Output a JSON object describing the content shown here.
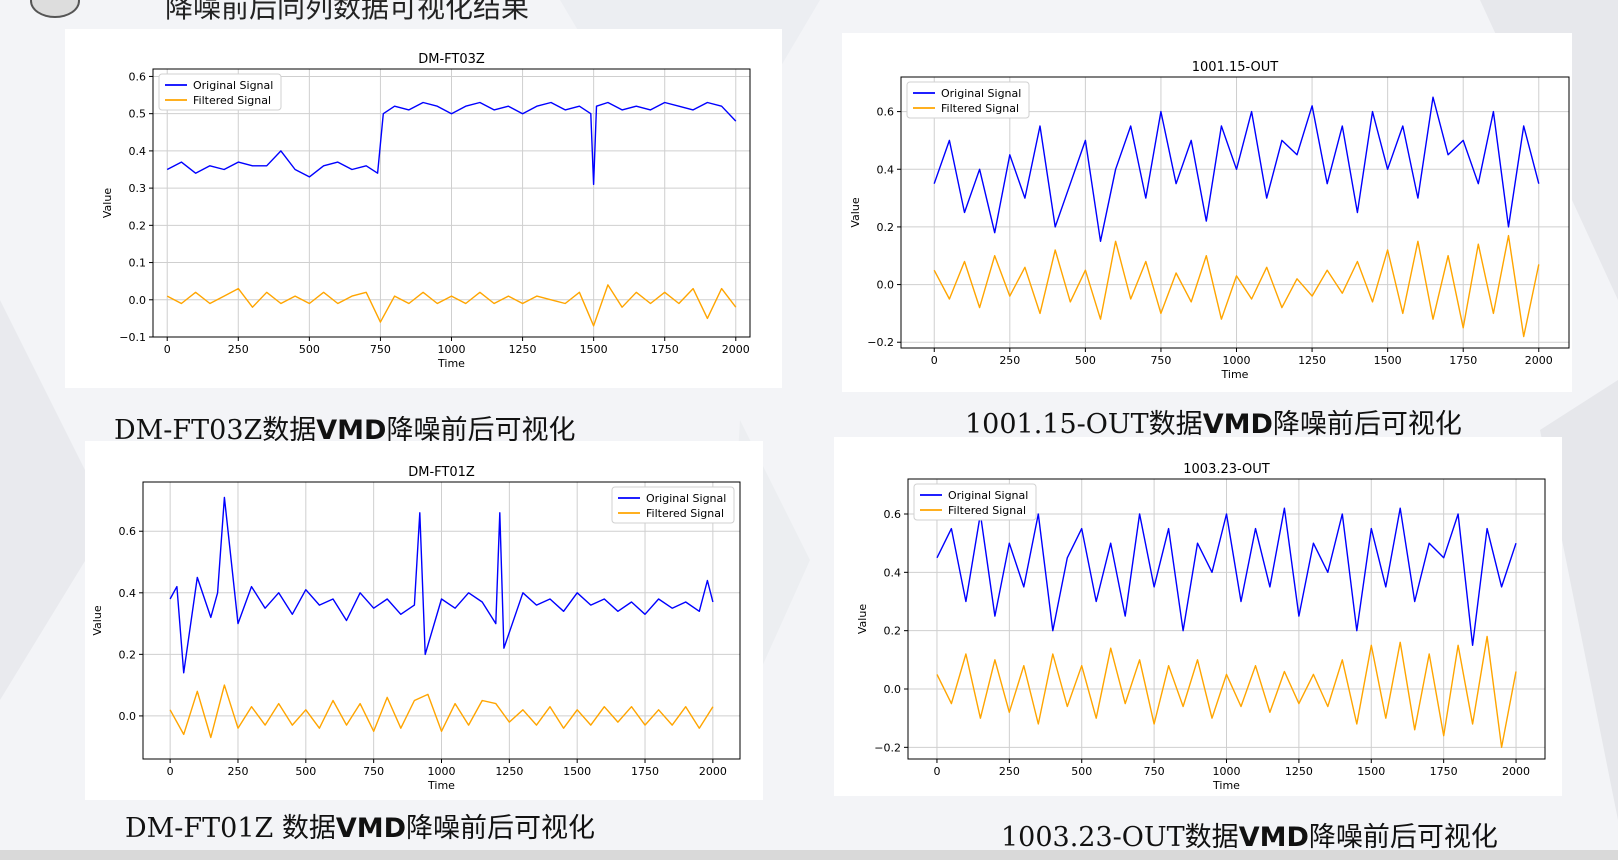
{
  "header": {
    "title": "降噪前后同列数据可视化结果"
  },
  "colors": {
    "original": "#0000ff",
    "filtered": "#ffa500",
    "background": "#f3f4f7"
  },
  "panels": [
    {
      "caption_prefix": "DM-FT03Z数据",
      "caption_bold": "VMD",
      "caption_suffix": "降噪前后可视化",
      "chart_data": {
        "type": "line",
        "title": "DM-FT03Z",
        "xlabel": "Time",
        "ylabel": "Value",
        "xlim": [
          -50,
          2050
        ],
        "ylim": [
          -0.1,
          0.62
        ],
        "xticks": [
          0,
          250,
          500,
          750,
          1000,
          1250,
          1500,
          1750,
          2000
        ],
        "xtick_labels": [
          "0",
          "250",
          "500",
          "750",
          "1000",
          "1250",
          "1500",
          "1750",
          "2000"
        ],
        "yticks": [
          -0.1,
          0.0,
          0.1,
          0.2,
          0.3,
          0.4,
          0.5,
          0.6
        ],
        "ytick_labels": [
          "−0.1",
          "0.0",
          "0.1",
          "0.2",
          "0.3",
          "0.4",
          "0.5",
          "0.6"
        ],
        "legend_position": "top-left",
        "grid": true,
        "series": [
          {
            "name": "Original Signal",
            "x": [
              0,
              50,
              100,
              150,
              200,
              250,
              300,
              350,
              400,
              450,
              500,
              550,
              600,
              650,
              700,
              740,
              760,
              800,
              850,
              900,
              950,
              1000,
              1050,
              1100,
              1150,
              1200,
              1250,
              1300,
              1350,
              1400,
              1450,
              1490,
              1500,
              1510,
              1550,
              1600,
              1650,
              1700,
              1750,
              1800,
              1850,
              1900,
              1950,
              2000
            ],
            "y": [
              0.35,
              0.37,
              0.34,
              0.36,
              0.35,
              0.37,
              0.36,
              0.36,
              0.4,
              0.35,
              0.33,
              0.36,
              0.37,
              0.35,
              0.36,
              0.34,
              0.5,
              0.52,
              0.51,
              0.53,
              0.52,
              0.5,
              0.52,
              0.53,
              0.51,
              0.52,
              0.5,
              0.52,
              0.53,
              0.51,
              0.52,
              0.5,
              0.31,
              0.52,
              0.53,
              0.51,
              0.52,
              0.51,
              0.53,
              0.52,
              0.51,
              0.53,
              0.52,
              0.48
            ]
          },
          {
            "name": "Filtered Signal",
            "x": [
              0,
              50,
              100,
              150,
              200,
              250,
              300,
              350,
              400,
              450,
              500,
              550,
              600,
              650,
              700,
              750,
              800,
              850,
              900,
              950,
              1000,
              1050,
              1100,
              1150,
              1200,
              1250,
              1300,
              1350,
              1400,
              1450,
              1500,
              1550,
              1600,
              1650,
              1700,
              1750,
              1800,
              1850,
              1900,
              1950,
              2000
            ],
            "y": [
              0.01,
              -0.01,
              0.02,
              -0.01,
              0.01,
              0.03,
              -0.02,
              0.02,
              -0.01,
              0.01,
              -0.01,
              0.02,
              -0.01,
              0.01,
              0.02,
              -0.06,
              0.01,
              -0.01,
              0.02,
              -0.01,
              0.01,
              -0.01,
              0.02,
              -0.01,
              0.01,
              -0.01,
              0.01,
              0.0,
              -0.01,
              0.02,
              -0.07,
              0.04,
              -0.02,
              0.02,
              -0.01,
              0.02,
              -0.01,
              0.03,
              -0.05,
              0.03,
              -0.02
            ]
          }
        ]
      }
    },
    {
      "caption_prefix": "1001.15-OUT数据",
      "caption_bold": "VMD",
      "caption_suffix": "降噪前后可视化",
      "chart_data": {
        "type": "line",
        "title": "1001.15-OUT",
        "xlabel": "Time",
        "ylabel": "Value",
        "xlim": [
          -110,
          2100
        ],
        "ylim": [
          -0.22,
          0.72
        ],
        "xticks": [
          0,
          250,
          500,
          750,
          1000,
          1250,
          1500,
          1750,
          2000
        ],
        "xtick_labels": [
          "0",
          "250",
          "500",
          "750",
          "1000",
          "1250",
          "1500",
          "1750",
          "2000"
        ],
        "yticks": [
          -0.2,
          0.0,
          0.2,
          0.4,
          0.6
        ],
        "ytick_labels": [
          "−0.2",
          "0.0",
          "0.2",
          "0.4",
          "0.6"
        ],
        "legend_position": "top-left",
        "grid": true,
        "series": [
          {
            "name": "Original Signal",
            "x": [
              0,
              50,
              100,
              150,
              200,
              250,
              300,
              350,
              400,
              450,
              500,
              550,
              600,
              650,
              700,
              750,
              800,
              850,
              900,
              950,
              1000,
              1050,
              1100,
              1150,
              1200,
              1250,
              1300,
              1350,
              1400,
              1450,
              1500,
              1550,
              1600,
              1650,
              1700,
              1750,
              1800,
              1850,
              1900,
              1950,
              2000
            ],
            "y": [
              0.35,
              0.5,
              0.25,
              0.4,
              0.18,
              0.45,
              0.3,
              0.55,
              0.2,
              0.35,
              0.5,
              0.15,
              0.4,
              0.55,
              0.3,
              0.6,
              0.35,
              0.5,
              0.22,
              0.55,
              0.4,
              0.6,
              0.3,
              0.5,
              0.45,
              0.62,
              0.35,
              0.55,
              0.25,
              0.6,
              0.4,
              0.55,
              0.3,
              0.65,
              0.45,
              0.5,
              0.35,
              0.6,
              0.2,
              0.55,
              0.35
            ]
          },
          {
            "name": "Filtered Signal",
            "x": [
              0,
              50,
              100,
              150,
              200,
              250,
              300,
              350,
              400,
              450,
              500,
              550,
              600,
              650,
              700,
              750,
              800,
              850,
              900,
              950,
              1000,
              1050,
              1100,
              1150,
              1200,
              1250,
              1300,
              1350,
              1400,
              1450,
              1500,
              1550,
              1600,
              1650,
              1700,
              1750,
              1800,
              1850,
              1900,
              1950,
              2000
            ],
            "y": [
              0.05,
              -0.05,
              0.08,
              -0.08,
              0.1,
              -0.04,
              0.06,
              -0.1,
              0.12,
              -0.06,
              0.05,
              -0.12,
              0.15,
              -0.05,
              0.08,
              -0.1,
              0.04,
              -0.06,
              0.1,
              -0.12,
              0.03,
              -0.05,
              0.06,
              -0.08,
              0.02,
              -0.04,
              0.05,
              -0.03,
              0.08,
              -0.06,
              0.12,
              -0.1,
              0.15,
              -0.12,
              0.1,
              -0.15,
              0.14,
              -0.1,
              0.17,
              -0.18,
              0.07
            ]
          }
        ]
      }
    },
    {
      "caption_prefix": "DM-FT01Z 数据",
      "caption_bold": "VMD",
      "caption_suffix": "降噪前后可视化",
      "chart_data": {
        "type": "line",
        "title": "DM-FT01Z",
        "xlabel": "Time",
        "ylabel": "Value",
        "xlim": [
          -100,
          2100
        ],
        "ylim": [
          -0.14,
          0.76
        ],
        "xticks": [
          0,
          250,
          500,
          750,
          1000,
          1250,
          1500,
          1750,
          2000
        ],
        "xtick_labels": [
          "0",
          "250",
          "500",
          "750",
          "1000",
          "1250",
          "1500",
          "1750",
          "2000"
        ],
        "yticks": [
          0.0,
          0.2,
          0.4,
          0.6
        ],
        "ytick_labels": [
          "0.0",
          "0.2",
          "0.4",
          "0.6"
        ],
        "legend_position": "top-right",
        "grid": true,
        "series": [
          {
            "name": "Original Signal",
            "x": [
              0,
              25,
              50,
              100,
              150,
              175,
              200,
              250,
              300,
              350,
              400,
              450,
              500,
              550,
              600,
              650,
              700,
              750,
              800,
              850,
              900,
              920,
              940,
              1000,
              1050,
              1100,
              1150,
              1200,
              1215,
              1230,
              1300,
              1350,
              1400,
              1450,
              1500,
              1550,
              1600,
              1650,
              1700,
              1750,
              1800,
              1850,
              1900,
              1950,
              1980,
              2000
            ],
            "y": [
              0.38,
              0.42,
              0.14,
              0.45,
              0.32,
              0.4,
              0.71,
              0.3,
              0.42,
              0.35,
              0.4,
              0.33,
              0.41,
              0.36,
              0.38,
              0.31,
              0.4,
              0.35,
              0.38,
              0.33,
              0.36,
              0.66,
              0.2,
              0.38,
              0.35,
              0.4,
              0.37,
              0.3,
              0.66,
              0.22,
              0.4,
              0.36,
              0.38,
              0.34,
              0.4,
              0.36,
              0.38,
              0.34,
              0.37,
              0.33,
              0.38,
              0.35,
              0.37,
              0.34,
              0.44,
              0.37
            ]
          },
          {
            "name": "Filtered Signal",
            "x": [
              0,
              50,
              100,
              150,
              200,
              250,
              300,
              350,
              400,
              450,
              500,
              550,
              600,
              650,
              700,
              750,
              800,
              850,
              900,
              950,
              1000,
              1050,
              1100,
              1150,
              1200,
              1250,
              1300,
              1350,
              1400,
              1450,
              1500,
              1550,
              1600,
              1650,
              1700,
              1750,
              1800,
              1850,
              1900,
              1950,
              2000
            ],
            "y": [
              0.02,
              -0.06,
              0.08,
              -0.07,
              0.1,
              -0.04,
              0.03,
              -0.03,
              0.04,
              -0.03,
              0.02,
              -0.04,
              0.05,
              -0.03,
              0.04,
              -0.05,
              0.06,
              -0.04,
              0.05,
              0.07,
              -0.05,
              0.04,
              -0.03,
              0.05,
              0.04,
              -0.02,
              0.02,
              -0.03,
              0.03,
              -0.04,
              0.02,
              -0.03,
              0.03,
              -0.02,
              0.03,
              -0.03,
              0.02,
              -0.03,
              0.03,
              -0.04,
              0.03
            ]
          }
        ]
      }
    },
    {
      "caption_prefix": "1003.23-OUT数据",
      "caption_bold": "VMD",
      "caption_suffix": "降噪前后可视化",
      "chart_data": {
        "type": "line",
        "title": "1003.23-OUT",
        "xlabel": "Time",
        "ylabel": "Value",
        "xlim": [
          -100,
          2100
        ],
        "ylim": [
          -0.24,
          0.72
        ],
        "xticks": [
          0,
          250,
          500,
          750,
          1000,
          1250,
          1500,
          1750,
          2000
        ],
        "xtick_labels": [
          "0",
          "250",
          "500",
          "750",
          "1000",
          "1250",
          "1500",
          "1750",
          "2000"
        ],
        "yticks": [
          -0.2,
          0.0,
          0.2,
          0.4,
          0.6
        ],
        "ytick_labels": [
          "−0.2",
          "0.0",
          "0.2",
          "0.4",
          "0.6"
        ],
        "legend_position": "top-left",
        "grid": true,
        "series": [
          {
            "name": "Original Signal",
            "x": [
              0,
              50,
              100,
              150,
              200,
              250,
              300,
              350,
              400,
              450,
              500,
              550,
              600,
              650,
              700,
              750,
              800,
              850,
              900,
              950,
              1000,
              1050,
              1100,
              1150,
              1200,
              1250,
              1300,
              1350,
              1400,
              1450,
              1500,
              1550,
              1600,
              1650,
              1700,
              1750,
              1800,
              1850,
              1900,
              1950,
              2000
            ],
            "y": [
              0.45,
              0.55,
              0.3,
              0.6,
              0.25,
              0.5,
              0.35,
              0.6,
              0.2,
              0.45,
              0.55,
              0.3,
              0.5,
              0.25,
              0.6,
              0.35,
              0.55,
              0.2,
              0.5,
              0.4,
              0.6,
              0.3,
              0.55,
              0.35,
              0.62,
              0.25,
              0.5,
              0.4,
              0.6,
              0.2,
              0.55,
              0.35,
              0.62,
              0.3,
              0.5,
              0.45,
              0.6,
              0.15,
              0.55,
              0.35,
              0.5
            ]
          },
          {
            "name": "Filtered Signal",
            "x": [
              0,
              50,
              100,
              150,
              200,
              250,
              300,
              350,
              400,
              450,
              500,
              550,
              600,
              650,
              700,
              750,
              800,
              850,
              900,
              950,
              1000,
              1050,
              1100,
              1150,
              1200,
              1250,
              1300,
              1350,
              1400,
              1450,
              1500,
              1550,
              1600,
              1650,
              1700,
              1750,
              1800,
              1850,
              1900,
              1950,
              2000
            ],
            "y": [
              0.05,
              -0.05,
              0.12,
              -0.1,
              0.1,
              -0.08,
              0.08,
              -0.12,
              0.12,
              -0.06,
              0.08,
              -0.1,
              0.14,
              -0.05,
              0.1,
              -0.12,
              0.08,
              -0.06,
              0.1,
              -0.1,
              0.05,
              -0.06,
              0.08,
              -0.08,
              0.06,
              -0.05,
              0.05,
              -0.06,
              0.1,
              -0.12,
              0.15,
              -0.1,
              0.16,
              -0.14,
              0.12,
              -0.16,
              0.15,
              -0.12,
              0.18,
              -0.2,
              0.06
            ]
          }
        ]
      }
    }
  ]
}
